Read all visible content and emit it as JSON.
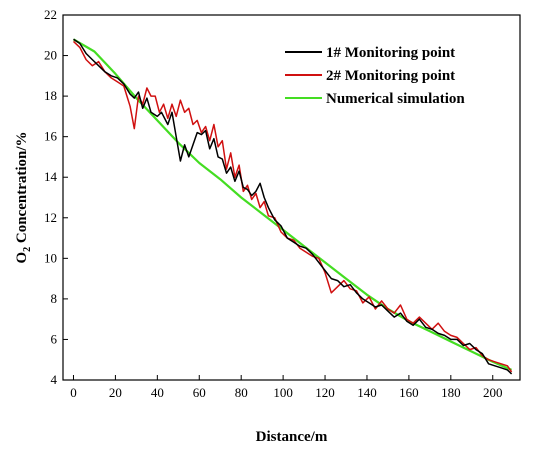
{
  "chart_data": {
    "type": "line",
    "title": "",
    "xlabel": "Distance/m",
    "ylabel_main": "O",
    "ylabel_sub": "2",
    "ylabel_rest": " Concentration/%",
    "xlim": [
      -5,
      213
    ],
    "ylim": [
      4,
      22
    ],
    "xticks": [
      0,
      20,
      40,
      60,
      80,
      100,
      120,
      140,
      160,
      180,
      200
    ],
    "yticks": [
      4,
      6,
      8,
      10,
      12,
      14,
      16,
      18,
      20,
      22
    ],
    "grid": false,
    "legend_position": "top-right",
    "series": [
      {
        "name": "1# Monitoring point",
        "color": "#000000",
        "x": [
          0,
          3,
          6,
          9,
          12,
          15,
          18,
          21,
          24,
          27,
          29,
          31,
          33,
          35,
          37,
          40,
          42,
          45,
          47,
          49,
          51,
          53,
          55,
          57,
          59,
          61,
          63,
          65,
          67,
          69,
          71,
          73,
          75,
          77,
          79,
          81,
          83,
          85,
          87,
          89,
          91,
          93,
          96,
          99,
          102,
          105,
          108,
          111,
          114,
          117,
          120,
          123,
          126,
          129,
          132,
          135,
          138,
          141,
          144,
          147,
          150,
          153,
          156,
          159,
          162,
          165,
          168,
          171,
          174,
          177,
          180,
          183,
          186,
          189,
          192,
          195,
          198,
          201,
          204,
          207,
          209
        ],
        "values": [
          20.8,
          20.6,
          20.1,
          19.8,
          19.5,
          19.2,
          19.0,
          18.9,
          18.6,
          18.1,
          17.9,
          18.2,
          17.4,
          17.9,
          17.2,
          17.0,
          17.2,
          16.6,
          17.2,
          16.0,
          14.8,
          15.6,
          15.0,
          15.6,
          16.2,
          16.1,
          16.3,
          15.4,
          15.9,
          15.0,
          14.9,
          14.2,
          14.5,
          13.8,
          14.3,
          13.5,
          13.4,
          13.1,
          13.3,
          13.7,
          13.0,
          12.5,
          11.9,
          11.6,
          11.0,
          10.8,
          10.6,
          10.5,
          10.2,
          9.8,
          9.4,
          9.0,
          8.9,
          8.6,
          8.7,
          8.3,
          8.0,
          7.8,
          7.6,
          7.7,
          7.4,
          7.1,
          7.3,
          6.9,
          6.7,
          7.0,
          6.6,
          6.5,
          6.3,
          6.2,
          6.0,
          6.0,
          5.7,
          5.8,
          5.5,
          5.3,
          4.8,
          4.7,
          4.6,
          4.5,
          4.3
        ]
      },
      {
        "name": "2# Monitoring point",
        "color": "#d01010",
        "x": [
          0,
          3,
          6,
          9,
          12,
          15,
          18,
          21,
          24,
          27,
          29,
          30,
          31,
          33,
          35,
          37,
          39,
          41,
          43,
          45,
          47,
          49,
          51,
          53,
          55,
          57,
          59,
          61,
          63,
          65,
          67,
          69,
          71,
          73,
          75,
          77,
          79,
          81,
          83,
          85,
          87,
          89,
          91,
          93,
          96,
          99,
          102,
          105,
          108,
          111,
          114,
          117,
          120,
          123,
          126,
          129,
          132,
          135,
          138,
          141,
          144,
          147,
          150,
          153,
          156,
          159,
          162,
          165,
          168,
          171,
          174,
          177,
          180,
          183,
          186,
          189,
          192,
          195,
          198,
          201,
          204,
          207,
          209
        ],
        "values": [
          20.7,
          20.4,
          19.8,
          19.5,
          19.7,
          19.2,
          18.9,
          18.7,
          18.5,
          17.5,
          16.4,
          17.2,
          18.0,
          17.6,
          18.4,
          18.0,
          18.0,
          17.2,
          17.6,
          16.9,
          17.6,
          17.0,
          17.8,
          17.2,
          17.4,
          16.6,
          16.8,
          16.2,
          16.5,
          15.8,
          16.6,
          15.5,
          15.8,
          14.4,
          15.2,
          14.0,
          14.6,
          13.3,
          13.6,
          12.9,
          13.2,
          12.5,
          12.8,
          12.1,
          12.0,
          11.3,
          11.0,
          10.9,
          10.5,
          10.3,
          10.1,
          10.0,
          9.3,
          8.3,
          8.6,
          8.9,
          8.5,
          8.4,
          7.8,
          8.1,
          7.5,
          7.9,
          7.5,
          7.3,
          7.7,
          7.0,
          6.8,
          7.1,
          6.8,
          6.5,
          6.8,
          6.4,
          6.2,
          6.1,
          5.8,
          5.5,
          5.6,
          5.2,
          5.0,
          4.9,
          4.8,
          4.7,
          4.4
        ]
      },
      {
        "name": "Numerical simulation",
        "color": "#44dd22",
        "x": [
          0,
          10,
          20,
          30,
          40,
          50,
          60,
          70,
          80,
          90,
          100,
          110,
          120,
          130,
          140,
          150,
          160,
          170,
          180,
          190,
          200,
          209
        ],
        "values": [
          20.8,
          20.2,
          19.1,
          17.9,
          16.8,
          15.7,
          14.7,
          13.9,
          13.0,
          12.2,
          11.4,
          10.6,
          9.8,
          9.0,
          8.2,
          7.5,
          6.9,
          6.4,
          5.9,
          5.4,
          4.9,
          4.5
        ]
      }
    ]
  }
}
